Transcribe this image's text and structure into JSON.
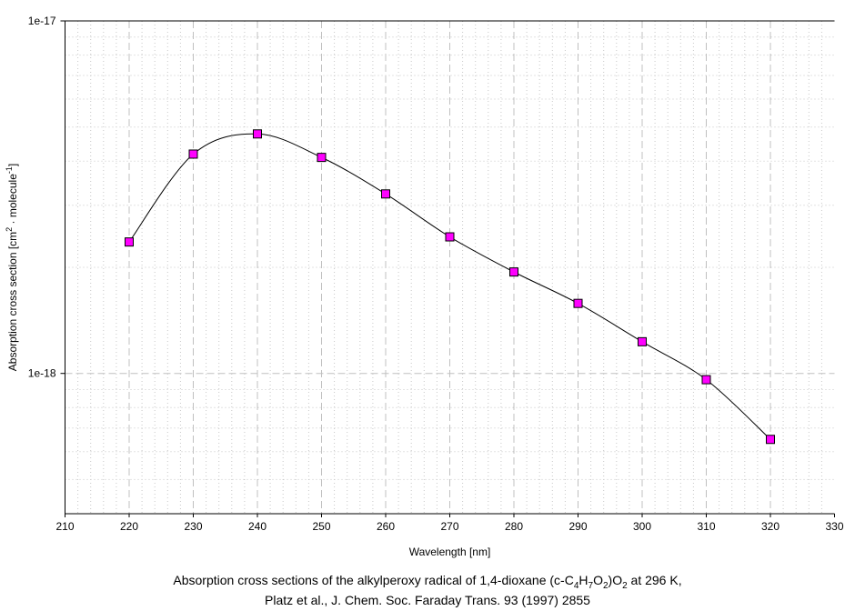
{
  "chart_data": {
    "type": "line",
    "xlabel": "Wavelength [nm]",
    "ylabel": "Absorption cross section [cm^2 · molecule^-1]",
    "ylabel_parts": {
      "pre": "Absorption cross section [cm",
      "sup1": "2",
      "mid": " · molecule",
      "sup2": "-1",
      "post": "]"
    },
    "xlim": [
      210,
      330
    ],
    "ylim": [
      4e-19,
      1e-17
    ],
    "yscale": "log",
    "grid": true,
    "xticks": [
      "210",
      "220",
      "230",
      "240",
      "250",
      "260",
      "270",
      "280",
      "290",
      "300",
      "310",
      "320",
      "330"
    ],
    "yticks": [
      "1e-18",
      "1e-17"
    ],
    "x": [
      220,
      230,
      240,
      250,
      260,
      270,
      280,
      290,
      300,
      310,
      320
    ],
    "y": [
      2.36e-18,
      4.19e-18,
      4.78e-18,
      4.1e-18,
      3.23e-18,
      2.44e-18,
      1.94e-18,
      1.58e-18,
      1.23e-18,
      9.6e-19,
      6.5e-19
    ],
    "marker_color": "#ff00ff",
    "line_color": "#000000"
  },
  "caption": {
    "line1": {
      "a": "Absorption cross sections of the alkylperoxy radical of 1,4-dioxane (c-C",
      "s1": "4",
      "b": "H",
      "s2": "7",
      "c": "O",
      "s3": "2",
      "d": ")O",
      "s4": "2",
      "e": " at 296 K,"
    },
    "line2": "Platz et al., J. Chem. Soc. Faraday Trans. 93 (1997) 2855"
  }
}
